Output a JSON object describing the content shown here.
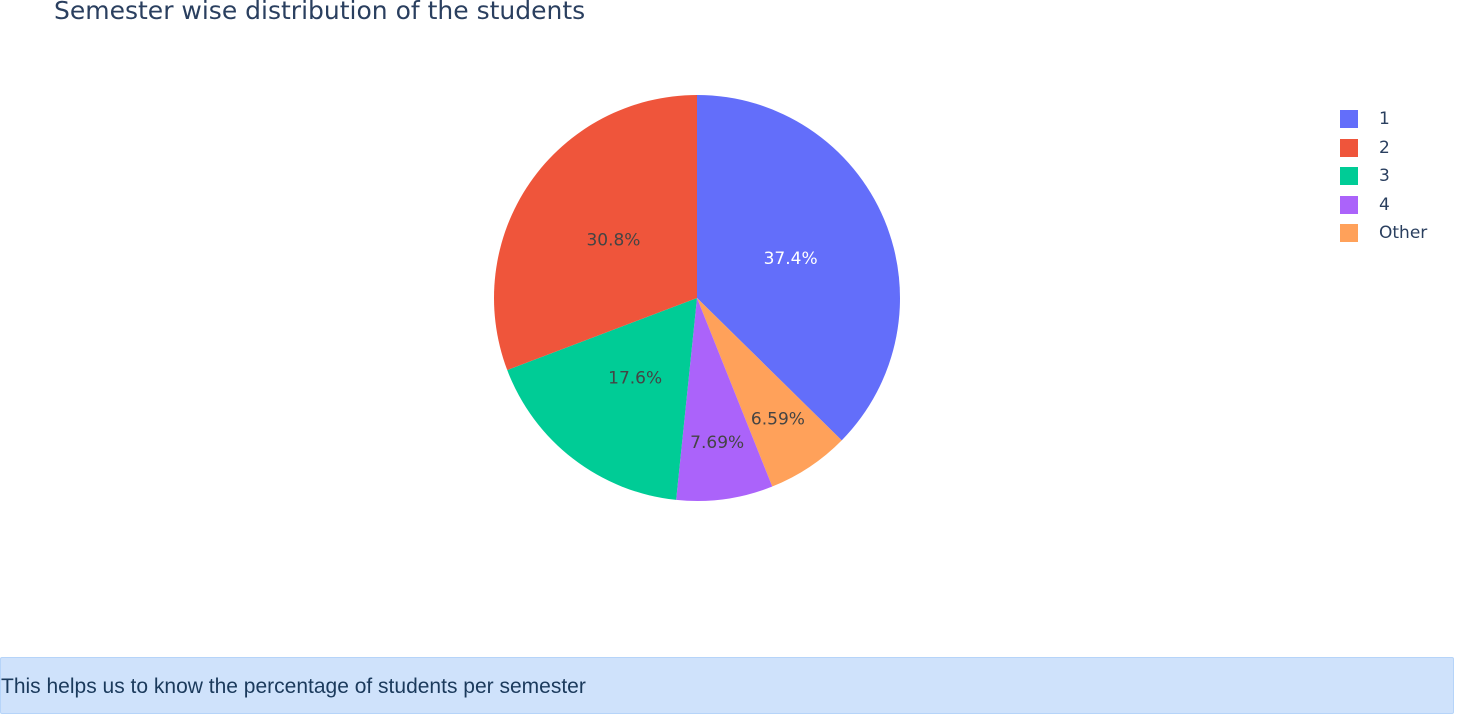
{
  "chart_data": {
    "type": "pie",
    "title": "Semester wise distribution of the students",
    "categories": [
      "1",
      "2",
      "3",
      "4",
      "Other"
    ],
    "values": [
      37.4,
      30.8,
      17.6,
      7.69,
      6.59
    ],
    "labels": [
      "37.4%",
      "30.8%",
      "17.6%",
      "7.69%",
      "6.59%"
    ],
    "colors": [
      "#636efa",
      "#ef553b",
      "#00cc96",
      "#ab63fa",
      "#ffa15a"
    ],
    "slice_order": [
      0,
      4,
      3,
      2,
      1
    ],
    "direction": "clockwise",
    "start": "top",
    "legend_placement": "top-right",
    "label_colors": [
      "#ffffff",
      "#444444",
      "#444444",
      "#444444",
      "#444444"
    ]
  },
  "note": {
    "text": "This helps us to know the percentage of students per semester"
  }
}
